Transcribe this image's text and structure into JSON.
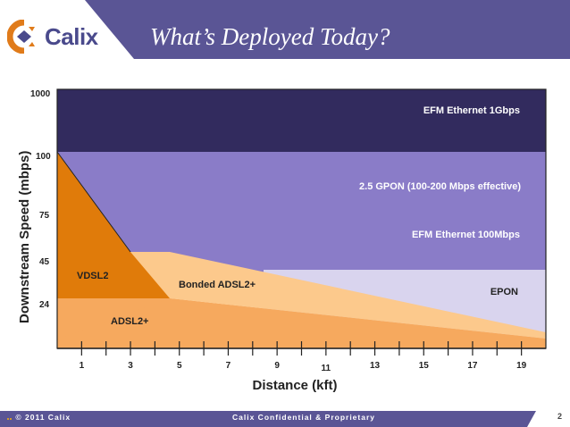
{
  "header": {
    "brand": "Calix",
    "title": "What’s Deployed Today?"
  },
  "colors": {
    "header_band": "#5a5595",
    "logo_orange": "#e07b1a",
    "logo_purple": "#4a4a8c",
    "efm_1g": "#322b5e",
    "gpon_band": "#8a7cc8",
    "epon": "#d9d4ee",
    "vdsl2": "#e07b0a",
    "bonded_adsl2": "#fcc98c",
    "adsl2": "#f6a95e"
  },
  "chart_data": {
    "type": "area",
    "ylabel": "Downstream Speed (mbps)",
    "xlabel": "Distance (kft)",
    "y_ticks": [
      "24",
      "45",
      "75",
      "100",
      "1000"
    ],
    "x_ticks": [
      "1",
      "3",
      "5",
      "7",
      "9",
      "11",
      "13",
      "15",
      "17",
      "19"
    ],
    "xlim": [
      0,
      20
    ],
    "regions": [
      {
        "name": "EFM Ethernet 1Gbps",
        "extent": "above 100 Mbps, all distances"
      },
      {
        "name": "2.5 GPON (100-200 Mbps effective)",
        "extent": "100 Mbps, all distances"
      },
      {
        "name": "EFM Ethernet 100Mbps",
        "extent": "100 Mbps, all distances"
      },
      {
        "name": "EPON",
        "extent": "to 45 Mbps, 9 to 20 kft"
      },
      {
        "name": "VDSL2",
        "points": [
          [
            0,
            100
          ],
          [
            0,
            24
          ],
          [
            2.7,
            24
          ],
          [
            2.7,
            50
          ]
        ]
      },
      {
        "name": "Bonded ADSL2+",
        "points": [
          [
            2.7,
            50
          ],
          [
            4.5,
            50
          ],
          [
            20,
            6
          ],
          [
            20,
            6
          ]
        ]
      },
      {
        "name": "ADSL2+",
        "points": [
          [
            0,
            24
          ],
          [
            4.5,
            24
          ],
          [
            20,
            6
          ],
          [
            0,
            0
          ]
        ]
      }
    ],
    "labels": {
      "efm_1g": "EFM Ethernet 1Gbps",
      "gpon": "2.5 GPON (100-200 Mbps effective)",
      "efm_100": "EFM Ethernet 100Mbps",
      "epon": "EPON",
      "vdsl2": "VDSL2",
      "bonded": "Bonded ADSL2+",
      "adsl2": "ADSL2+"
    }
  },
  "footer": {
    "copyright": "© 2011 Calix",
    "confidential": "Calix Confidential & Proprietary",
    "page": "2"
  }
}
